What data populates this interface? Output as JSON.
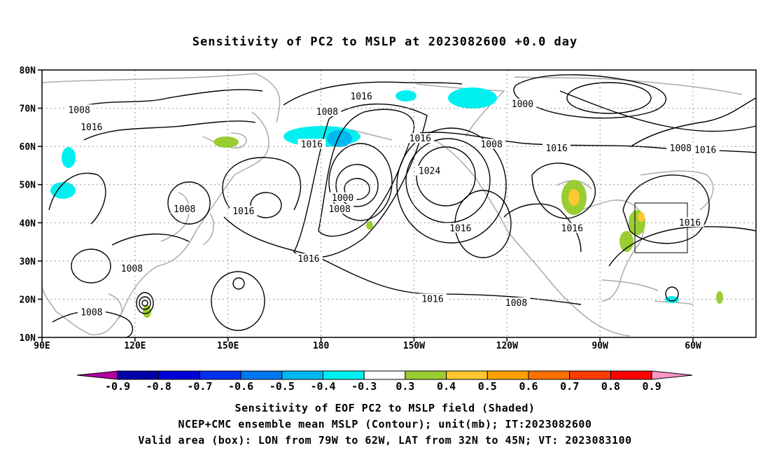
{
  "title": "Sensitivity of PC2 to MSLP at 2023082600 +0.0 day",
  "map": {
    "lat_labels": [
      "80N",
      "70N",
      "60N",
      "50N",
      "40N",
      "30N",
      "20N",
      "10N"
    ],
    "lon_labels": [
      "90E",
      "120E",
      "150E",
      "180",
      "150W",
      "120W",
      "90W",
      "60W"
    ],
    "contour_labels": [
      {
        "text": "1016",
        "lon": -167,
        "lat": 73
      },
      {
        "text": "1008",
        "lon": 102,
        "lat": 69.5
      },
      {
        "text": "1016",
        "lon": 106,
        "lat": 65
      },
      {
        "text": "1008",
        "lon": -178,
        "lat": 69
      },
      {
        "text": "1000",
        "lon": -115,
        "lat": 71
      },
      {
        "text": "1016",
        "lon": 177,
        "lat": 60.5
      },
      {
        "text": "1016",
        "lon": -148,
        "lat": 62
      },
      {
        "text": "1008",
        "lon": -125,
        "lat": 60.5
      },
      {
        "text": "1016",
        "lon": -104,
        "lat": 59.5
      },
      {
        "text": "1008",
        "lon": -64,
        "lat": 59.5
      },
      {
        "text": "1016",
        "lon": -56,
        "lat": 59
      },
      {
        "text": "1024",
        "lon": -145,
        "lat": 53.5
      },
      {
        "text": "1000",
        "lon": -173,
        "lat": 46.5
      },
      {
        "text": "1008",
        "lon": -174,
        "lat": 43.5
      },
      {
        "text": "1008",
        "lon": 136,
        "lat": 43.5
      },
      {
        "text": "1016",
        "lon": 155,
        "lat": 43
      },
      {
        "text": "1016",
        "lon": -135,
        "lat": 38.5
      },
      {
        "text": "1016",
        "lon": -99,
        "lat": 38.5
      },
      {
        "text": "1016",
        "lon": -61,
        "lat": 40
      },
      {
        "text": "1016",
        "lon": 176,
        "lat": 30.5
      },
      {
        "text": "1008",
        "lon": 119,
        "lat": 28
      },
      {
        "text": "1016",
        "lon": -144,
        "lat": 20
      },
      {
        "text": "1008",
        "lon": -117,
        "lat": 19
      },
      {
        "text": "1008",
        "lon": 106,
        "lat": 16.5
      }
    ]
  },
  "legend": {
    "ticks": [
      "-0.9",
      "-0.8",
      "-0.7",
      "-0.6",
      "-0.5",
      "-0.4",
      "-0.3",
      "0.3",
      "0.4",
      "0.5",
      "0.6",
      "0.7",
      "0.8",
      "0.9"
    ],
    "colors": [
      "#b0009c",
      "#0000a8",
      "#0000d8",
      "#0030f0",
      "#0078f0",
      "#00b8f0",
      "#00f0f0",
      "#ffffff",
      "#9acd32",
      "#ffc832",
      "#ffa000",
      "#ff7000",
      "#ff3c00",
      "#ff0000",
      "#ff96c8"
    ]
  },
  "captions": {
    "line1": "Sensitivity of EOF PC2 to MSLP field (Shaded)",
    "line2": "NCEP+CMC ensemble mean MSLP (Contour); unit(mb); IT:2023082600",
    "line3": "Valid area (box): LON from 79W to 62W, LAT from 32N to 45N; VT: 2023083100"
  }
}
